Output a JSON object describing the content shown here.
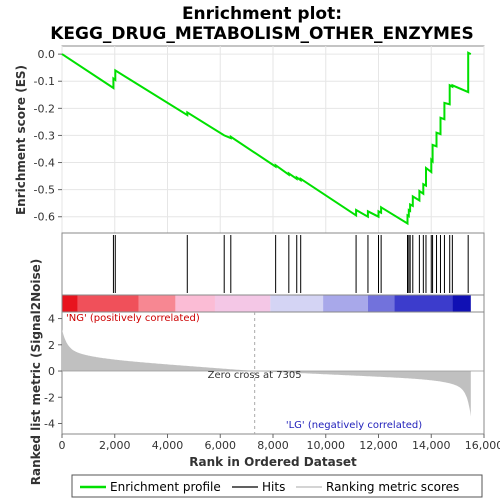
{
  "chart_data": {
    "type": "line",
    "title_line1": "Enrichment plot:",
    "title_line2": "KEGG_DRUG_METABOLISM_OTHER_ENZYMES",
    "xlabel": "Rank in Ordered Dataset",
    "ylabel_top": "Enrichment score (ES)",
    "ylabel_bottom": "Ranked list metric (Signal2Noise)",
    "xlim": [
      0,
      16000
    ],
    "es_ylim": [
      -0.66,
      0.03
    ],
    "metric_ylim": [
      -4.8,
      4.5
    ],
    "x_ticks": [
      0,
      2000,
      4000,
      6000,
      8000,
      10000,
      12000,
      14000,
      16000
    ],
    "x_tick_labels": [
      "0",
      "2,000",
      "4,000",
      "6,000",
      "8,000",
      "10,000",
      "12,000",
      "14,000",
      "16,000"
    ],
    "es_ticks": [
      0.0,
      -0.1,
      -0.2,
      -0.3,
      -0.4,
      -0.5,
      -0.6
    ],
    "es_tick_labels": [
      "0.0",
      "-0.1",
      "-0.2",
      "-0.3",
      "-0.4",
      "-0.5",
      "-0.6"
    ],
    "metric_ticks": [
      4,
      2,
      0,
      -2,
      -4
    ],
    "metric_tick_labels": [
      "4",
      "2",
      "0",
      "-2",
      "-4"
    ],
    "total_genes": 15500,
    "zero_cross": 7305,
    "zero_cross_label": "Zero cross at 7305",
    "pos_label": "'NG' (positively correlated)",
    "neg_label": "'LG' (negatively correlated)",
    "hits": [
      1950,
      2020,
      4750,
      6150,
      6400,
      8100,
      8600,
      8900,
      9050,
      11150,
      11600,
      12000,
      12100,
      13100,
      13150,
      13200,
      13300,
      13550,
      13700,
      13800,
      14000,
      14050,
      14200,
      14350,
      14500,
      14700,
      14800,
      15400
    ],
    "es_curve": {
      "x": [
        0,
        1950,
        1950,
        2020,
        2020,
        4750,
        4750,
        6150,
        6150,
        6400,
        6400,
        8100,
        8100,
        8600,
        8600,
        8900,
        8900,
        9050,
        9050,
        11150,
        11150,
        11600,
        11600,
        12000,
        12000,
        12100,
        12100,
        13100,
        13100,
        13150,
        13150,
        13200,
        13200,
        13300,
        13300,
        13550,
        13550,
        13700,
        13700,
        13800,
        13800,
        14000,
        14000,
        14050,
        14050,
        14200,
        14200,
        14350,
        14350,
        14500,
        14500,
        14700,
        14700,
        14800,
        14800,
        15400,
        15400,
        15500
      ],
      "y": [
        0.0,
        -0.125,
        -0.09,
        -0.095,
        -0.06,
        -0.225,
        -0.215,
        -0.3,
        -0.3,
        -0.31,
        -0.305,
        -0.415,
        -0.41,
        -0.445,
        -0.44,
        -0.46,
        -0.455,
        -0.465,
        -0.46,
        -0.595,
        -0.575,
        -0.6,
        -0.58,
        -0.6,
        -0.58,
        -0.585,
        -0.565,
        -0.625,
        -0.595,
        -0.598,
        -0.575,
        -0.578,
        -0.555,
        -0.56,
        -0.525,
        -0.54,
        -0.505,
        -0.515,
        -0.48,
        -0.485,
        -0.42,
        -0.435,
        -0.39,
        -0.395,
        -0.335,
        -0.34,
        -0.29,
        -0.295,
        -0.235,
        -0.24,
        -0.18,
        -0.185,
        -0.115,
        -0.12,
        -0.115,
        -0.14,
        0.005,
        0.0
      ]
    },
    "legend": [
      {
        "label": "Enrichment profile",
        "color": "#00e000"
      },
      {
        "label": "Hits",
        "color": "#000000"
      },
      {
        "label": "Ranking metric scores",
        "color": "#bbbbbb"
      }
    ],
    "heatmap_colors": [
      "#e8141e",
      "#f0505a",
      "#f78792",
      "#fbbcd5",
      "#f4c7e6",
      "#d4d4f4",
      "#a8a8ea",
      "#7272dc",
      "#3c3ccc",
      "#1010b4"
    ],
    "colors": {
      "es_line": "#00e000",
      "metric_fill": "#c0c0c0",
      "pos_text": "#cc0000",
      "neg_text": "#2222bb"
    }
  }
}
